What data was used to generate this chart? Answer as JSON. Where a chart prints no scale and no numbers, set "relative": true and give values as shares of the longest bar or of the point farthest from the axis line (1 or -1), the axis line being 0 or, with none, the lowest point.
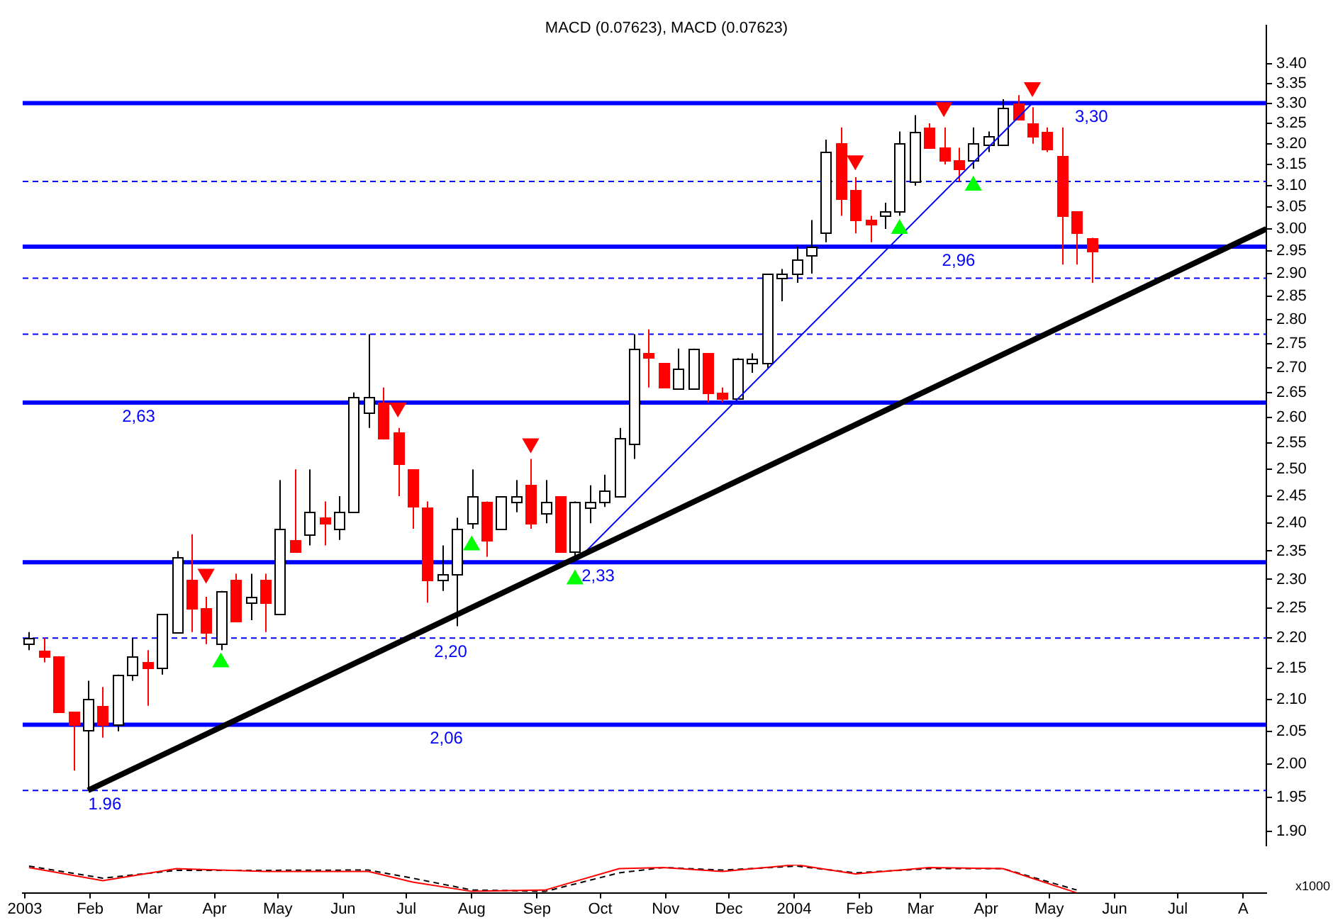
{
  "chart_data": [
    {
      "type": "candlestick",
      "log": true,
      "tick_labels": "y",
      "xlim": [
        "2002-12-31",
        "2004-08-12"
      ],
      "ylim": [
        1.88,
        3.5
      ],
      "yticks": [
        {
          "value": 1.9,
          "label": "1.90"
        },
        {
          "value": 1.95,
          "label": "1.95"
        },
        {
          "value": 2.0,
          "label": "2.00"
        },
        {
          "value": 2.05,
          "label": "2.05"
        },
        {
          "value": 2.1,
          "label": "2.10"
        },
        {
          "value": 2.15,
          "label": "2.15"
        },
        {
          "value": 2.2,
          "label": "2.20"
        },
        {
          "value": 2.25,
          "label": "2.25"
        },
        {
          "value": 2.3,
          "label": "2.30"
        },
        {
          "value": 2.35,
          "label": "2.35"
        },
        {
          "value": 2.4,
          "label": "2.40"
        },
        {
          "value": 2.45,
          "label": "2.45"
        },
        {
          "value": 2.5,
          "label": "2.50"
        },
        {
          "value": 2.55,
          "label": "2.55"
        },
        {
          "value": 2.6,
          "label": "2.60"
        },
        {
          "value": 2.65,
          "label": "2.65"
        },
        {
          "value": 2.7,
          "label": "2.70"
        },
        {
          "value": 2.75,
          "label": "2.75"
        },
        {
          "value": 2.8,
          "label": "2.80"
        },
        {
          "value": 2.85,
          "label": "2.85"
        },
        {
          "value": 2.9,
          "label": "2.90"
        },
        {
          "value": 2.95,
          "label": "2.95"
        },
        {
          "value": 3.0,
          "label": "3.00"
        },
        {
          "value": 3.05,
          "label": "3.05"
        },
        {
          "value": 3.1,
          "label": "3.10"
        },
        {
          "value": 3.15,
          "label": "3.15"
        },
        {
          "value": 3.2,
          "label": "3.20"
        },
        {
          "value": 3.25,
          "label": "3.25"
        },
        {
          "value": 3.3,
          "label": "3.30"
        },
        {
          "value": 3.35,
          "label": "3.35"
        },
        {
          "value": 3.4,
          "label": "3.40"
        }
      ],
      "x": [
        "2003-01-03",
        "2003-01-10",
        "2003-01-17",
        "2003-01-24",
        "2003-01-31",
        "2003-02-07",
        "2003-02-14",
        "2003-02-21",
        "2003-02-28",
        "2003-03-07",
        "2003-03-14",
        "2003-03-21",
        "2003-03-28",
        "2003-04-04",
        "2003-04-11",
        "2003-04-18",
        "2003-04-25",
        "2003-05-02",
        "2003-05-09",
        "2003-05-16",
        "2003-05-23",
        "2003-05-30",
        "2003-06-06",
        "2003-06-13",
        "2003-06-20",
        "2003-06-27",
        "2003-07-04",
        "2003-07-11",
        "2003-07-18",
        "2003-07-25",
        "2003-08-01",
        "2003-08-08",
        "2003-08-15",
        "2003-08-22",
        "2003-08-29",
        "2003-09-05",
        "2003-09-12",
        "2003-09-19",
        "2003-09-26",
        "2003-10-03",
        "2003-10-10",
        "2003-10-17",
        "2003-10-24",
        "2003-10-31",
        "2003-11-07",
        "2003-11-14",
        "2003-11-21",
        "2003-11-28",
        "2003-12-05",
        "2003-12-12",
        "2003-12-19",
        "2003-12-26",
        "2004-01-02",
        "2004-01-09",
        "2004-01-16",
        "2004-01-23",
        "2004-01-30",
        "2004-02-06",
        "2004-02-13",
        "2004-02-20",
        "2004-02-27",
        "2004-03-05",
        "2004-03-12",
        "2004-03-19",
        "2004-03-26",
        "2004-04-02",
        "2004-04-09",
        "2004-04-16",
        "2004-04-23",
        "2004-04-30",
        "2004-05-07",
        "2004-05-14",
        "2004-05-21"
      ],
      "ohlc": [
        [
          2.19,
          2.21,
          2.18,
          2.2
        ],
        [
          2.18,
          2.2,
          2.16,
          2.17
        ],
        [
          2.17,
          2.17,
          2.08,
          2.08
        ],
        [
          2.08,
          2.08,
          1.99,
          2.06
        ],
        [
          2.05,
          2.13,
          1.96,
          2.1
        ],
        [
          2.09,
          2.12,
          2.04,
          2.06
        ],
        [
          2.06,
          2.14,
          2.05,
          2.14
        ],
        [
          2.14,
          2.2,
          2.13,
          2.17
        ],
        [
          2.16,
          2.18,
          2.09,
          2.15
        ],
        [
          2.15,
          2.24,
          2.14,
          2.24
        ],
        [
          2.21,
          2.35,
          2.21,
          2.34
        ],
        [
          2.3,
          2.38,
          2.21,
          2.25
        ],
        [
          2.25,
          2.27,
          2.19,
          2.21
        ],
        [
          2.19,
          2.28,
          2.18,
          2.28
        ],
        [
          2.3,
          2.31,
          2.23,
          2.23
        ],
        [
          2.26,
          2.31,
          2.23,
          2.27
        ],
        [
          2.3,
          2.31,
          2.21,
          2.26
        ],
        [
          2.24,
          2.48,
          2.24,
          2.39
        ],
        [
          2.37,
          2.5,
          2.35,
          2.35
        ],
        [
          2.38,
          2.5,
          2.36,
          2.42
        ],
        [
          2.41,
          2.44,
          2.36,
          2.4
        ],
        [
          2.39,
          2.45,
          2.37,
          2.42
        ],
        [
          2.42,
          2.65,
          2.42,
          2.64
        ],
        [
          2.61,
          2.77,
          2.58,
          2.64
        ],
        [
          2.63,
          2.66,
          2.56,
          2.56
        ],
        [
          2.57,
          2.58,
          2.45,
          2.51
        ],
        [
          2.5,
          2.5,
          2.39,
          2.43
        ],
        [
          2.43,
          2.44,
          2.26,
          2.3
        ],
        [
          2.3,
          2.36,
          2.28,
          2.31
        ],
        [
          2.31,
          2.41,
          2.22,
          2.39
        ],
        [
          2.4,
          2.5,
          2.39,
          2.45
        ],
        [
          2.44,
          2.44,
          2.34,
          2.37
        ],
        [
          2.39,
          2.45,
          2.39,
          2.45
        ],
        [
          2.44,
          2.48,
          2.42,
          2.45
        ],
        [
          2.47,
          2.52,
          2.39,
          2.4
        ],
        [
          2.42,
          2.48,
          2.4,
          2.44
        ],
        [
          2.45,
          2.45,
          2.35,
          2.35
        ],
        [
          2.35,
          2.44,
          2.33,
          2.44
        ],
        [
          2.43,
          2.47,
          2.4,
          2.44
        ],
        [
          2.44,
          2.49,
          2.43,
          2.46
        ],
        [
          2.45,
          2.58,
          2.45,
          2.56
        ],
        [
          2.55,
          2.77,
          2.52,
          2.74
        ],
        [
          2.73,
          2.78,
          2.66,
          2.72
        ],
        [
          2.71,
          2.71,
          2.66,
          2.66
        ],
        [
          2.66,
          2.74,
          2.66,
          2.7
        ],
        [
          2.66,
          2.74,
          2.66,
          2.74
        ],
        [
          2.73,
          2.73,
          2.63,
          2.65
        ],
        [
          2.65,
          2.66,
          2.63,
          2.64
        ],
        [
          2.64,
          2.72,
          2.64,
          2.72
        ],
        [
          2.71,
          2.73,
          2.69,
          2.72
        ],
        [
          2.71,
          2.9,
          2.7,
          2.9
        ],
        [
          2.89,
          2.91,
          2.84,
          2.9
        ],
        [
          2.9,
          2.96,
          2.88,
          2.93
        ],
        [
          2.94,
          3.02,
          2.9,
          2.96
        ],
        [
          2.99,
          3.21,
          2.97,
          3.18
        ],
        [
          3.2,
          3.24,
          3.03,
          3.07
        ],
        [
          3.09,
          3.12,
          2.99,
          3.02
        ],
        [
          3.02,
          3.03,
          2.97,
          3.01
        ],
        [
          3.03,
          3.06,
          3.0,
          3.04
        ],
        [
          3.04,
          3.23,
          3.03,
          3.2
        ],
        [
          3.11,
          3.27,
          3.1,
          3.23
        ],
        [
          3.24,
          3.25,
          3.19,
          3.19
        ],
        [
          3.19,
          3.24,
          3.15,
          3.16
        ],
        [
          3.16,
          3.19,
          3.11,
          3.14
        ],
        [
          3.16,
          3.24,
          3.14,
          3.2
        ],
        [
          3.2,
          3.23,
          3.18,
          3.22
        ],
        [
          3.2,
          3.31,
          3.2,
          3.29
        ],
        [
          3.3,
          3.32,
          3.26,
          3.26
        ],
        [
          3.25,
          3.29,
          3.2,
          3.22
        ],
        [
          3.23,
          3.24,
          3.18,
          3.19
        ],
        [
          3.17,
          3.24,
          2.92,
          3.03
        ],
        [
          3.04,
          3.04,
          2.92,
          2.99
        ],
        [
          2.98,
          2.98,
          2.88,
          2.95
        ]
      ],
      "series": [
        {
          "type": "line",
          "color": "#000000",
          "x": [
            "2003-01-31",
            "2004-08-12"
          ],
          "values": [
            1.96,
            3.0
          ]
        },
        {
          "type": "line",
          "color": "#0000ff",
          "x": [
            "2003-09-19",
            "2004-04-23"
          ],
          "values": [
            2.33,
            3.3
          ]
        },
        {
          "type": "scatter",
          "marker": "triangle",
          "color": "#ff0000",
          "x": [
            "2003-03-28",
            "2003-06-27",
            "2003-08-29",
            "2004-01-30",
            "2004-03-12",
            "2004-04-23"
          ],
          "values": [
            2.31,
            2.62,
            2.55,
            3.16,
            3.29,
            3.34
          ]
        },
        {
          "type": "scatter",
          "marker": "triangle",
          "color": "#00ff00",
          "x": [
            "2003-04-04",
            "2003-08-01",
            "2003-09-19",
            "2004-02-20",
            "2004-03-26"
          ],
          "values": [
            2.16,
            2.36,
            2.3,
            3.0,
            3.1
          ]
        }
      ],
      "ref_lines": [
        {
          "axis": "y",
          "value": 3.3,
          "color": "#0000ff",
          "line_style": "solid"
        },
        {
          "axis": "y",
          "value": 3.11,
          "color": "#0000ff",
          "line_style": "dashed"
        },
        {
          "axis": "y",
          "value": 2.96,
          "color": "#0000ff",
          "line_style": "solid"
        },
        {
          "axis": "y",
          "value": 2.89,
          "color": "#0000ff",
          "line_style": "dashed"
        },
        {
          "axis": "y",
          "value": 2.77,
          "color": "#0000ff",
          "line_style": "dashed"
        },
        {
          "axis": "y",
          "value": 2.63,
          "color": "#0000ff",
          "line_style": "solid"
        },
        {
          "axis": "y",
          "value": 2.33,
          "color": "#0000ff",
          "line_style": "solid"
        },
        {
          "axis": "y",
          "value": 2.2,
          "color": "#0000ff",
          "line_style": "dashed"
        },
        {
          "axis": "y",
          "value": 2.06,
          "color": "#0000ff",
          "line_style": "solid"
        },
        {
          "axis": "y",
          "value": 1.96,
          "color": "#0000ff",
          "line_style": "dashed"
        }
      ],
      "annotations": [
        {
          "text": "3,30",
          "x": "2004-05-21",
          "y": 3.3
        },
        {
          "text": "2,96",
          "x": "2004-03-19",
          "y": 2.96
        },
        {
          "text": "2,63",
          "x": "2003-02-24",
          "y": 2.63
        },
        {
          "text": "2,33",
          "x": "2003-09-30",
          "y": 2.33
        },
        {
          "text": "2,20",
          "x": "2003-07-22",
          "y": 2.2
        },
        {
          "text": "2,06",
          "x": "2003-07-20",
          "y": 2.06
        },
        {
          "text": "1.96",
          "x": "2003-02-08",
          "y": 1.96
        }
      ]
    },
    {
      "type": "line",
      "relative": true,
      "tick_labels": "x",
      "title": "MACD (0.07623), MACD (0.07623)",
      "annotations": [
        "x1000"
      ],
      "xlim": [
        "2002-12-31",
        "2004-08-12"
      ],
      "xticks": [
        {
          "value": "2003-01-01",
          "label": "2003"
        },
        {
          "value": "2003-02-01",
          "label": "Feb"
        },
        {
          "value": "2003-03-01",
          "label": "Mar"
        },
        {
          "value": "2003-04-01",
          "label": "Apr"
        },
        {
          "value": "2003-05-01",
          "label": "May"
        },
        {
          "value": "2003-06-01",
          "label": "Jun"
        },
        {
          "value": "2003-07-01",
          "label": "Jul"
        },
        {
          "value": "2003-08-01",
          "label": "Aug"
        },
        {
          "value": "2003-09-01",
          "label": "Sep"
        },
        {
          "value": "2003-10-01",
          "label": "Oct"
        },
        {
          "value": "2003-11-01",
          "label": "Nov"
        },
        {
          "value": "2003-12-01",
          "label": "Dec"
        },
        {
          "value": "2004-01-01",
          "label": "2004"
        },
        {
          "value": "2004-02-01",
          "label": "Feb"
        },
        {
          "value": "2004-03-01",
          "label": "Mar"
        },
        {
          "value": "2004-04-01",
          "label": "Apr"
        },
        {
          "value": "2004-05-01",
          "label": "May"
        },
        {
          "value": "2004-06-01",
          "label": "Jun"
        },
        {
          "value": "2004-07-01",
          "label": "Jul"
        },
        {
          "value": "2004-08-01",
          "label": "A"
        }
      ],
      "x": [
        "2003-01-03",
        "2003-02-07",
        "2003-03-14",
        "2003-04-25",
        "2003-06-13",
        "2003-07-04",
        "2003-08-01",
        "2003-09-05",
        "2003-10-10",
        "2003-10-31",
        "2003-11-28",
        "2004-01-02",
        "2004-01-30",
        "2004-03-05",
        "2004-04-09",
        "2004-05-14"
      ],
      "series": [
        {
          "color": "#ff0000",
          "line_style": "solid",
          "values": [
            0.9,
            0.43,
            0.86,
            0.76,
            0.76,
            0.38,
            0.05,
            0.1,
            0.86,
            0.9,
            0.76,
            1.0,
            0.67,
            0.9,
            0.86,
            0.0
          ]
        },
        {
          "color": "#000000",
          "line_style": "dashed",
          "values": [
            0.95,
            0.52,
            0.8,
            0.8,
            0.81,
            0.52,
            0.1,
            0.05,
            0.71,
            0.9,
            0.81,
            0.95,
            0.71,
            0.86,
            0.86,
            0.1
          ]
        }
      ]
    }
  ]
}
